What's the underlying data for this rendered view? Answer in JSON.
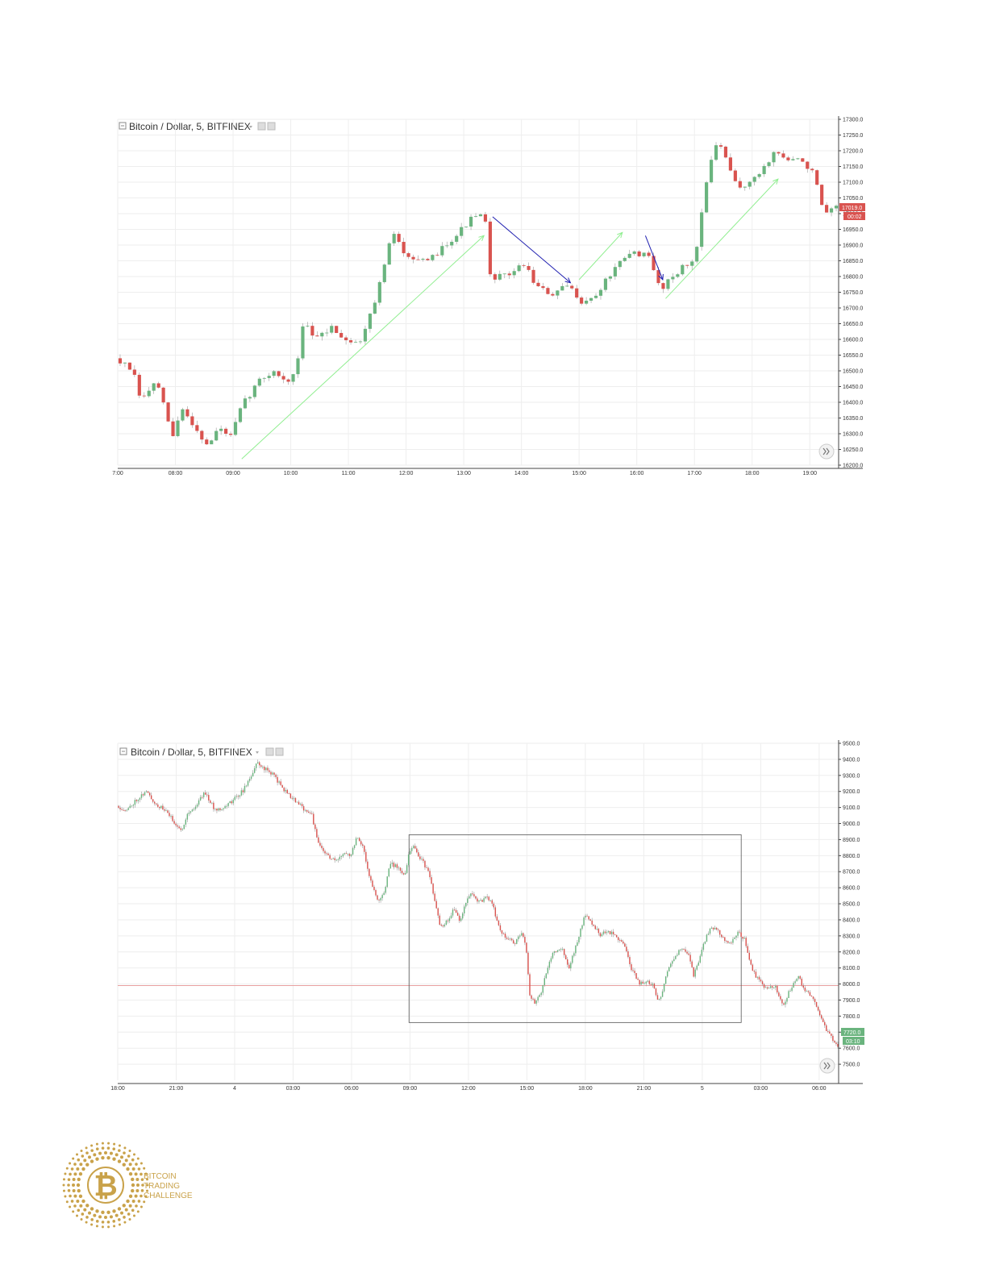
{
  "charts": [
    {
      "title": "Bitcoin / Dollar, 5, BITFINEX",
      "price_badge": "17019.0",
      "time_badge": "00:02",
      "scroll_icon": "double-chevron-right-icon",
      "colors": {
        "up": "#6ab47e",
        "down": "#d9534f",
        "grid": "#eeeeee",
        "arrow_up": "#90ee90",
        "arrow_down": "#1f1fb0"
      },
      "chart_data": {
        "type": "candlestick",
        "title": "Bitcoin / Dollar, 5, BITFINEX",
        "xlabel": "",
        "ylabel": "",
        "ylim": [
          16200,
          17300
        ],
        "y_ticks": [
          "17300.0",
          "17250.0",
          "17200.0",
          "17150.0",
          "17100.0",
          "17050.0",
          "17000.0",
          "16950.0",
          "16900.0",
          "16850.0",
          "16800.0",
          "16750.0",
          "16700.0",
          "16650.0",
          "16600.0",
          "16550.0",
          "16500.0",
          "16450.0",
          "16400.0",
          "16350.0",
          "16300.0",
          "16250.0",
          "16200.0"
        ],
        "x_ticks": [
          "7:00",
          "08:00",
          "09:00",
          "10:00",
          "11:00",
          "12:00",
          "13:00",
          "14:00",
          "15:00",
          "16:00",
          "17:00",
          "18:00",
          "19:00"
        ],
        "x_tick_hours": [
          7,
          8,
          9,
          10,
          11,
          12,
          13,
          14,
          15,
          16,
          17,
          18,
          19
        ],
        "x_range_hours": [
          7.0,
          19.5
        ],
        "anchors": [
          [
            7.0,
            16540
          ],
          [
            7.3,
            16500
          ],
          [
            7.45,
            16400
          ],
          [
            7.7,
            16470
          ],
          [
            8.0,
            16290
          ],
          [
            8.15,
            16380
          ],
          [
            8.35,
            16330
          ],
          [
            8.6,
            16260
          ],
          [
            8.8,
            16320
          ],
          [
            9.0,
            16290
          ],
          [
            9.2,
            16390
          ],
          [
            9.5,
            16470
          ],
          [
            9.75,
            16500
          ],
          [
            10.0,
            16460
          ],
          [
            10.15,
            16510
          ],
          [
            10.25,
            16650
          ],
          [
            10.5,
            16600
          ],
          [
            10.75,
            16640
          ],
          [
            11.0,
            16600
          ],
          [
            11.25,
            16590
          ],
          [
            11.35,
            16650
          ],
          [
            11.55,
            16750
          ],
          [
            11.8,
            16940
          ],
          [
            12.0,
            16880
          ],
          [
            12.2,
            16860
          ],
          [
            12.4,
            16840
          ],
          [
            12.7,
            16900
          ],
          [
            12.9,
            16930
          ],
          [
            13.15,
            16980
          ],
          [
            13.4,
            17000
          ],
          [
            13.5,
            16800
          ],
          [
            13.75,
            16800
          ],
          [
            14.1,
            16840
          ],
          [
            14.3,
            16770
          ],
          [
            14.55,
            16740
          ],
          [
            14.85,
            16770
          ],
          [
            15.1,
            16720
          ],
          [
            15.3,
            16730
          ],
          [
            15.55,
            16800
          ],
          [
            15.8,
            16850
          ],
          [
            16.0,
            16880
          ],
          [
            16.25,
            16860
          ],
          [
            16.45,
            16760
          ],
          [
            16.7,
            16810
          ],
          [
            16.85,
            16830
          ],
          [
            17.05,
            16850
          ],
          [
            17.2,
            17060
          ],
          [
            17.3,
            17140
          ],
          [
            17.45,
            17240
          ],
          [
            17.6,
            17160
          ],
          [
            17.8,
            17080
          ],
          [
            18.1,
            17110
          ],
          [
            18.25,
            17150
          ],
          [
            18.45,
            17200
          ],
          [
            18.65,
            17170
          ],
          [
            18.9,
            17170
          ],
          [
            19.1,
            17130
          ],
          [
            19.3,
            16990
          ],
          [
            19.5,
            17019
          ]
        ],
        "candle_count": 150,
        "seed": 7,
        "arrows": [
          {
            "kind": "up",
            "from": [
              9.15,
              16220
            ],
            "to": [
              13.35,
              16930
            ]
          },
          {
            "kind": "down",
            "from": [
              13.5,
              16990
            ],
            "to": [
              14.85,
              16780
            ]
          },
          {
            "kind": "up",
            "from": [
              15.0,
              16790
            ],
            "to": [
              15.75,
              16940
            ]
          },
          {
            "kind": "down",
            "from": [
              16.15,
              16930
            ],
            "to": [
              16.45,
              16790
            ]
          },
          {
            "kind": "up",
            "from": [
              16.5,
              16730
            ],
            "to": [
              18.45,
              17110
            ]
          }
        ]
      }
    },
    {
      "title": "Bitcoin / Dollar, 5, BITFINEX",
      "price_badge": "7720.0",
      "time_badge": "03:10",
      "scroll_icon": "double-chevron-right-icon",
      "colors": {
        "up": "#6ab47e",
        "down": "#d9534f",
        "grid": "#eeeeee",
        "hline": "#e8a0a0",
        "rect": "#555555"
      },
      "chart_data": {
        "type": "candlestick",
        "title": "Bitcoin / Dollar, 5, BITFINEX",
        "xlabel": "",
        "ylabel": "",
        "ylim": [
          7400,
          9500
        ],
        "y_ticks": [
          "9500.0",
          "9400.0",
          "9300.0",
          "9200.0",
          "9100.0",
          "9000.0",
          "8900.0",
          "8800.0",
          "8700.0",
          "8600.0",
          "8500.0",
          "8400.0",
          "8300.0",
          "8200.0",
          "8100.0",
          "8000.0",
          "7900.0",
          "7800.0",
          "7700.0",
          "7600.0",
          "7500.0"
        ],
        "x_ticks": [
          "18:00",
          "21:00",
          "4",
          "03:00",
          "06:00",
          "09:00",
          "12:00",
          "15:00",
          "18:00",
          "21:00",
          "5",
          "03:00",
          "06:00"
        ],
        "x_tick_hours": [
          18,
          21,
          24,
          27,
          30,
          33,
          36,
          39,
          42,
          45,
          48,
          51,
          54
        ],
        "x_range_hours": [
          18.0,
          55.0
        ],
        "anchors": [
          [
            18.0,
            9110
          ],
          [
            18.5,
            9080
          ],
          [
            19.0,
            9150
          ],
          [
            19.5,
            9200
          ],
          [
            20.0,
            9120
          ],
          [
            20.5,
            9080
          ],
          [
            21.0,
            9000
          ],
          [
            21.3,
            8950
          ],
          [
            21.6,
            9060
          ],
          [
            22.0,
            9100
          ],
          [
            22.5,
            9200
          ],
          [
            23.0,
            9090
          ],
          [
            23.5,
            9100
          ],
          [
            24.0,
            9150
          ],
          [
            24.5,
            9210
          ],
          [
            24.9,
            9300
          ],
          [
            25.2,
            9380
          ],
          [
            25.6,
            9340
          ],
          [
            26.0,
            9310
          ],
          [
            26.5,
            9220
          ],
          [
            27.0,
            9160
          ],
          [
            27.5,
            9100
          ],
          [
            28.0,
            9060
          ],
          [
            28.3,
            8880
          ],
          [
            28.8,
            8800
          ],
          [
            29.3,
            8760
          ],
          [
            29.7,
            8830
          ],
          [
            30.0,
            8800
          ],
          [
            30.3,
            8920
          ],
          [
            30.6,
            8870
          ],
          [
            31.0,
            8650
          ],
          [
            31.4,
            8510
          ],
          [
            31.7,
            8560
          ],
          [
            32.0,
            8750
          ],
          [
            32.4,
            8730
          ],
          [
            32.8,
            8680
          ],
          [
            33.0,
            8820
          ],
          [
            33.2,
            8860
          ],
          [
            33.6,
            8780
          ],
          [
            34.0,
            8700
          ],
          [
            34.3,
            8520
          ],
          [
            34.6,
            8350
          ],
          [
            35.0,
            8400
          ],
          [
            35.3,
            8470
          ],
          [
            35.6,
            8400
          ],
          [
            35.9,
            8500
          ],
          [
            36.2,
            8570
          ],
          [
            36.6,
            8510
          ],
          [
            37.0,
            8540
          ],
          [
            37.3,
            8490
          ],
          [
            37.6,
            8350
          ],
          [
            38.0,
            8290
          ],
          [
            38.4,
            8250
          ],
          [
            38.8,
            8320
          ],
          [
            39.0,
            8230
          ],
          [
            39.2,
            7920
          ],
          [
            39.5,
            7880
          ],
          [
            39.8,
            7960
          ],
          [
            40.0,
            8060
          ],
          [
            40.4,
            8200
          ],
          [
            40.8,
            8230
          ],
          [
            41.2,
            8100
          ],
          [
            41.6,
            8250
          ],
          [
            42.0,
            8430
          ],
          [
            42.4,
            8380
          ],
          [
            42.8,
            8310
          ],
          [
            43.2,
            8330
          ],
          [
            43.6,
            8300
          ],
          [
            44.0,
            8250
          ],
          [
            44.4,
            8100
          ],
          [
            44.8,
            8000
          ],
          [
            45.2,
            8020
          ],
          [
            45.5,
            7990
          ],
          [
            45.8,
            7880
          ],
          [
            46.2,
            8050
          ],
          [
            46.5,
            8150
          ],
          [
            46.9,
            8210
          ],
          [
            47.3,
            8200
          ],
          [
            47.6,
            8050
          ],
          [
            48.0,
            8200
          ],
          [
            48.3,
            8320
          ],
          [
            48.7,
            8360
          ],
          [
            49.1,
            8290
          ],
          [
            49.5,
            8250
          ],
          [
            49.9,
            8320
          ],
          [
            50.2,
            8280
          ],
          [
            50.6,
            8090
          ],
          [
            51.0,
            8010
          ],
          [
            51.4,
            7970
          ],
          [
            51.8,
            7980
          ],
          [
            52.2,
            7870
          ],
          [
            52.6,
            7980
          ],
          [
            53.0,
            8040
          ],
          [
            53.3,
            7960
          ],
          [
            53.7,
            7920
          ],
          [
            54.1,
            7800
          ],
          [
            54.5,
            7690
          ],
          [
            54.8,
            7650
          ],
          [
            55.0,
            7600
          ]
        ],
        "candle_count": 440,
        "seed": 11,
        "hline": 7990,
        "rect": {
          "x0": 32.95,
          "x1": 50.0,
          "y0": 7760,
          "y1": 8930
        }
      }
    }
  ],
  "logo": {
    "symbol": "₿",
    "lines": [
      "BITCOIN",
      "TRADING",
      "CHALLENGE"
    ],
    "color": "#c9a24a"
  }
}
